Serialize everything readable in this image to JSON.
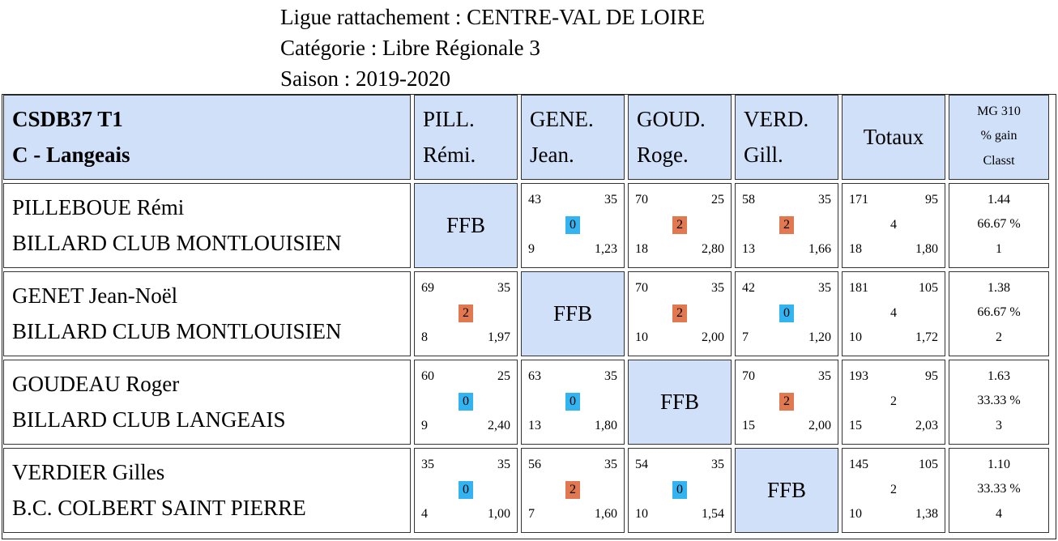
{
  "header": {
    "ligue": "Ligue rattachement : CENTRE-VAL DE LOIRE",
    "categorie": "Catégorie : Libre Régionale 3",
    "saison": "Saison : 2019-2020"
  },
  "team": {
    "line1": "CSDB37 T1",
    "line2": "C - Langeais"
  },
  "columns": [
    {
      "line1": "PILL.",
      "line2": "Rémi."
    },
    {
      "line1": "GENE.",
      "line2": "Jean."
    },
    {
      "line1": "GOUD.",
      "line2": "Roge."
    },
    {
      "line1": "VERD.",
      "line2": "Gill."
    }
  ],
  "totaux_label": "Totaux",
  "mg_header": {
    "line1": "MG 310",
    "line2": "% gain",
    "line3": "Classt"
  },
  "ffb_label": "FFB",
  "rows": [
    {
      "name": "PILLEBOUE Rémi",
      "club": "BILLARD CLUB MONTLOUISIEN",
      "matches": [
        null,
        {
          "points": "43",
          "target": "35",
          "result": "0",
          "innings": "9",
          "avg": "1,23"
        },
        {
          "points": "70",
          "target": "25",
          "result": "2",
          "innings": "18",
          "avg": "2,80"
        },
        {
          "points": "58",
          "target": "35",
          "result": "2",
          "innings": "13",
          "avg": "1,66"
        }
      ],
      "totals": {
        "points": "171",
        "target": "95",
        "result": "4",
        "innings": "18",
        "avg": "1,80"
      },
      "mg": "1.44",
      "pct": "66.67 %",
      "rank": "1"
    },
    {
      "name": "GENET Jean-Noël",
      "club": "BILLARD CLUB MONTLOUISIEN",
      "matches": [
        {
          "points": "69",
          "target": "35",
          "result": "2",
          "innings": "8",
          "avg": "1,97"
        },
        null,
        {
          "points": "70",
          "target": "35",
          "result": "2",
          "innings": "10",
          "avg": "2,00"
        },
        {
          "points": "42",
          "target": "35",
          "result": "0",
          "innings": "7",
          "avg": "1,20"
        }
      ],
      "totals": {
        "points": "181",
        "target": "105",
        "result": "4",
        "innings": "10",
        "avg": "1,72"
      },
      "mg": "1.38",
      "pct": "66.67 %",
      "rank": "2"
    },
    {
      "name": "GOUDEAU Roger",
      "club": "BILLARD CLUB LANGEAIS",
      "matches": [
        {
          "points": "60",
          "target": "25",
          "result": "0",
          "innings": "9",
          "avg": "2,40"
        },
        {
          "points": "63",
          "target": "35",
          "result": "0",
          "innings": "13",
          "avg": "1,80"
        },
        null,
        {
          "points": "70",
          "target": "35",
          "result": "2",
          "innings": "15",
          "avg": "2,00"
        }
      ],
      "totals": {
        "points": "193",
        "target": "95",
        "result": "2",
        "innings": "15",
        "avg": "2,03"
      },
      "mg": "1.63",
      "pct": "33.33 %",
      "rank": "3"
    },
    {
      "name": "VERDIER Gilles",
      "club": "B.C. COLBERT SAINT PIERRE",
      "matches": [
        {
          "points": "35",
          "target": "35",
          "result": "0",
          "innings": "4",
          "avg": "1,00"
        },
        {
          "points": "56",
          "target": "35",
          "result": "2",
          "innings": "7",
          "avg": "1,60"
        },
        {
          "points": "54",
          "target": "35",
          "result": "0",
          "innings": "10",
          "avg": "1,54"
        },
        null
      ],
      "totals": {
        "points": "145",
        "target": "105",
        "result": "2",
        "innings": "10",
        "avg": "1,38"
      },
      "mg": "1.10",
      "pct": "33.33 %",
      "rank": "4"
    }
  ],
  "colors": {
    "header_bg": "#cfe0f8",
    "win": "#e1784f",
    "loss": "#33b4f0"
  }
}
